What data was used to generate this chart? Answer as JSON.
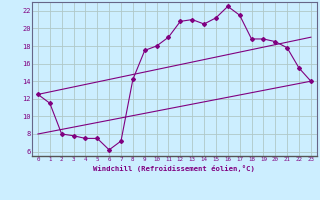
{
  "line1_x": [
    0,
    1,
    2,
    3,
    4,
    5,
    6,
    7,
    8,
    9,
    10,
    11,
    12,
    13,
    14,
    15,
    16,
    17,
    18,
    19,
    20,
    21,
    22,
    23
  ],
  "line1_y": [
    12.5,
    11.5,
    8.0,
    7.8,
    7.5,
    7.5,
    6.2,
    7.2,
    14.2,
    17.5,
    18.0,
    19.0,
    20.8,
    21.0,
    20.5,
    21.2,
    22.5,
    21.5,
    18.8,
    18.8,
    18.5,
    17.8,
    15.5,
    14.0
  ],
  "line2_x": [
    0,
    23
  ],
  "line2_y": [
    12.5,
    19.0
  ],
  "line3_x": [
    0,
    23
  ],
  "line3_y": [
    8.0,
    14.0
  ],
  "line_color": "#800080",
  "bg_color": "#cceeff",
  "grid_color": "#b0c8c8",
  "xlabel": "Windchill (Refroidissement éolien,°C)",
  "xlim": [
    -0.5,
    23.5
  ],
  "ylim": [
    5.5,
    23
  ],
  "yticks": [
    6,
    8,
    10,
    12,
    14,
    16,
    18,
    20,
    22
  ],
  "xticks": [
    0,
    1,
    2,
    3,
    4,
    5,
    6,
    7,
    8,
    9,
    10,
    11,
    12,
    13,
    14,
    15,
    16,
    17,
    18,
    19,
    20,
    21,
    22,
    23
  ]
}
